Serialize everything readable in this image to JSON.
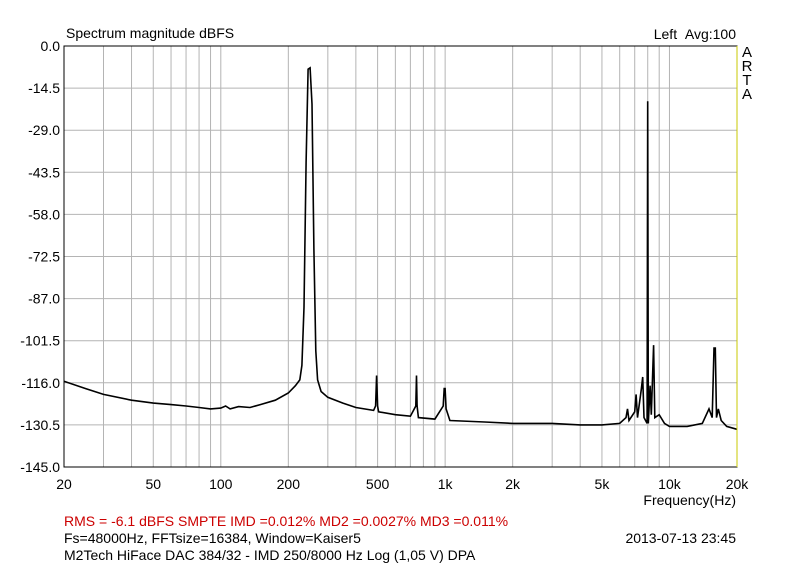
{
  "chart_data": {
    "type": "line",
    "title": "Spectrum magnitude dBFS",
    "channel": "Left",
    "averaging": "Avg:100",
    "brand": "ARTA",
    "xlabel": "Frequency(Hz)",
    "x_scale": "log",
    "xlim": [
      20,
      20000
    ],
    "ylim": [
      -145,
      0
    ],
    "grid": true,
    "x_ticks": [
      {
        "value": 20,
        "label": "20"
      },
      {
        "value": 50,
        "label": "50"
      },
      {
        "value": 100,
        "label": "100"
      },
      {
        "value": 200,
        "label": "200"
      },
      {
        "value": 500,
        "label": "500"
      },
      {
        "value": 1000,
        "label": "1k"
      },
      {
        "value": 2000,
        "label": "2k"
      },
      {
        "value": 5000,
        "label": "5k"
      },
      {
        "value": 10000,
        "label": "10k"
      },
      {
        "value": 20000,
        "label": "20k"
      }
    ],
    "y_ticks": [
      {
        "value": 0,
        "label": "0.0"
      },
      {
        "value": -14.5,
        "label": "-14.5"
      },
      {
        "value": -29,
        "label": "-29.0"
      },
      {
        "value": -43.5,
        "label": "-43.5"
      },
      {
        "value": -58,
        "label": "-58.0"
      },
      {
        "value": -72.5,
        "label": "-72.5"
      },
      {
        "value": -87,
        "label": "-87.0"
      },
      {
        "value": -101.5,
        "label": "-101.5"
      },
      {
        "value": -116,
        "label": "-116.0"
      },
      {
        "value": -130.5,
        "label": "-130.5"
      },
      {
        "value": -145,
        "label": "-145.0"
      }
    ],
    "series": [
      {
        "color": "#000000",
        "points": [
          [
            20,
            -115.5
          ],
          [
            25,
            -118
          ],
          [
            30,
            -120
          ],
          [
            40,
            -122
          ],
          [
            50,
            -123
          ],
          [
            60,
            -123.5
          ],
          [
            70,
            -124
          ],
          [
            80,
            -124.5
          ],
          [
            90,
            -125
          ],
          [
            100,
            -124.7
          ],
          [
            105,
            -124
          ],
          [
            110,
            -125
          ],
          [
            120,
            -124.2
          ],
          [
            135,
            -124.5
          ],
          [
            150,
            -123.5
          ],
          [
            175,
            -122
          ],
          [
            200,
            -119.5
          ],
          [
            215,
            -117
          ],
          [
            225,
            -115
          ],
          [
            230,
            -110
          ],
          [
            235,
            -90
          ],
          [
            240,
            -40
          ],
          [
            245,
            -8
          ],
          [
            250,
            -7.5
          ],
          [
            255,
            -20
          ],
          [
            260,
            -70
          ],
          [
            265,
            -105
          ],
          [
            270,
            -115
          ],
          [
            280,
            -119
          ],
          [
            300,
            -121
          ],
          [
            350,
            -123
          ],
          [
            400,
            -124.5
          ],
          [
            480,
            -125.5
          ],
          [
            490,
            -124
          ],
          [
            495,
            -113.5
          ],
          [
            500,
            -124
          ],
          [
            505,
            -126
          ],
          [
            600,
            -127
          ],
          [
            700,
            -127.5
          ],
          [
            740,
            -124
          ],
          [
            745,
            -113.5
          ],
          [
            750,
            -124
          ],
          [
            760,
            -128
          ],
          [
            900,
            -128.5
          ],
          [
            980,
            -124
          ],
          [
            990,
            -118
          ],
          [
            1000,
            -118
          ],
          [
            1010,
            -125
          ],
          [
            1050,
            -129
          ],
          [
            1500,
            -129.5
          ],
          [
            2000,
            -130
          ],
          [
            3000,
            -130
          ],
          [
            4000,
            -130.5
          ],
          [
            5000,
            -130.5
          ],
          [
            6000,
            -130
          ],
          [
            6400,
            -128
          ],
          [
            6500,
            -125
          ],
          [
            6600,
            -129
          ],
          [
            7000,
            -126
          ],
          [
            7100,
            -120
          ],
          [
            7200,
            -128
          ],
          [
            7500,
            -118
          ],
          [
            7600,
            -114
          ],
          [
            7700,
            -128
          ],
          [
            7950,
            -130
          ],
          [
            8000,
            -19
          ],
          [
            8050,
            -130
          ],
          [
            8200,
            -117
          ],
          [
            8300,
            -127
          ],
          [
            8500,
            -103
          ],
          [
            8600,
            -128
          ],
          [
            9000,
            -127
          ],
          [
            9500,
            -130
          ],
          [
            10000,
            -131
          ],
          [
            12000,
            -131
          ],
          [
            14000,
            -130
          ],
          [
            15000,
            -125
          ],
          [
            15500,
            -128
          ],
          [
            15800,
            -104
          ],
          [
            16000,
            -104
          ],
          [
            16200,
            -128
          ],
          [
            16500,
            -125
          ],
          [
            17000,
            -129
          ],
          [
            18000,
            -131
          ],
          [
            20000,
            -132
          ]
        ]
      }
    ],
    "stats": "RMS =   -6.1 dBFS   SMPTE IMD =0.012%   MD2 =0.0027%   MD3 =0.011%",
    "settings": "Fs=48000Hz, FFTsize=16384, Window=Kaiser5",
    "timestamp": "2013-07-13  23:45",
    "device": "M2Tech HiFace DAC 384/32 - IMD 250/8000 Hz Log (1,05 V)      DPA"
  }
}
